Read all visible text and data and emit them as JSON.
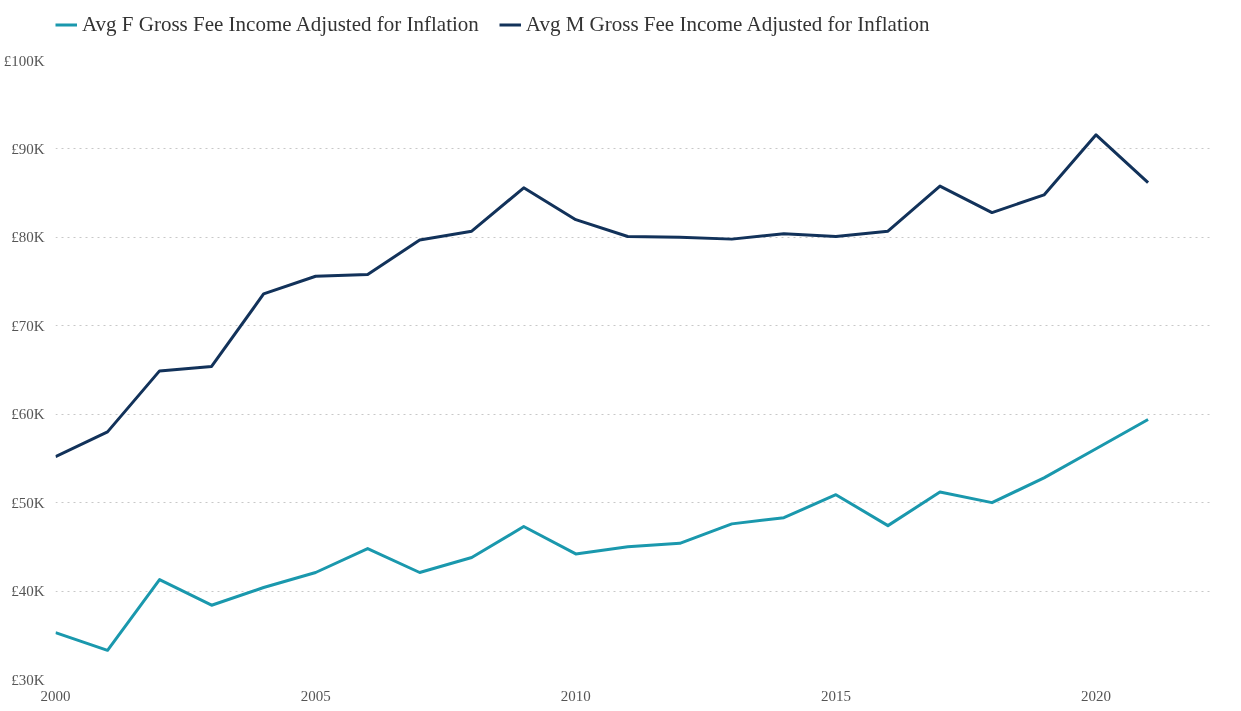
{
  "chart_data": {
    "type": "line",
    "x": [
      2000,
      2001,
      2002,
      2003,
      2004,
      2005,
      2006,
      2007,
      2008,
      2009,
      2010,
      2011,
      2012,
      2013,
      2014,
      2015,
      2016,
      2017,
      2018,
      2019,
      2020,
      2021
    ],
    "series": [
      {
        "name": "Avg F Gross Fee Income Adjusted for Inflation",
        "color": "#1a98ad",
        "values": [
          35.3,
          33.3,
          41.3,
          38.4,
          40.4,
          42.1,
          44.8,
          42.1,
          43.8,
          47.3,
          44.2,
          45.0,
          45.4,
          47.6,
          48.3,
          50.9,
          47.4,
          51.2,
          50.0,
          52.8,
          56.1,
          59.4
        ]
      },
      {
        "name": "Avg M Gross Fee Income Adjusted for Inflation",
        "color": "#12325a",
        "values": [
          55.2,
          58.0,
          64.9,
          65.4,
          73.6,
          75.6,
          75.8,
          79.7,
          80.7,
          85.6,
          82.0,
          80.1,
          80.0,
          79.8,
          80.4,
          80.1,
          80.7,
          85.8,
          82.8,
          84.8,
          91.6,
          86.2
        ]
      }
    ],
    "xlim": [
      2000,
      2022.2
    ],
    "xticks": [
      2000,
      2005,
      2010,
      2015,
      2020
    ],
    "ylim": [
      30,
      100
    ],
    "yticks": [
      {
        "value": 30,
        "label": "£30K"
      },
      {
        "value": 40,
        "label": "£40K"
      },
      {
        "value": 50,
        "label": "£50K"
      },
      {
        "value": 60,
        "label": "£60K"
      },
      {
        "value": 70,
        "label": "£70K"
      },
      {
        "value": 80,
        "label": "£80K"
      },
      {
        "value": 90,
        "label": "£90K"
      },
      {
        "value": 100,
        "label": "£100K"
      }
    ],
    "grid": "y",
    "legend": "top left",
    "line_style": "solid"
  }
}
